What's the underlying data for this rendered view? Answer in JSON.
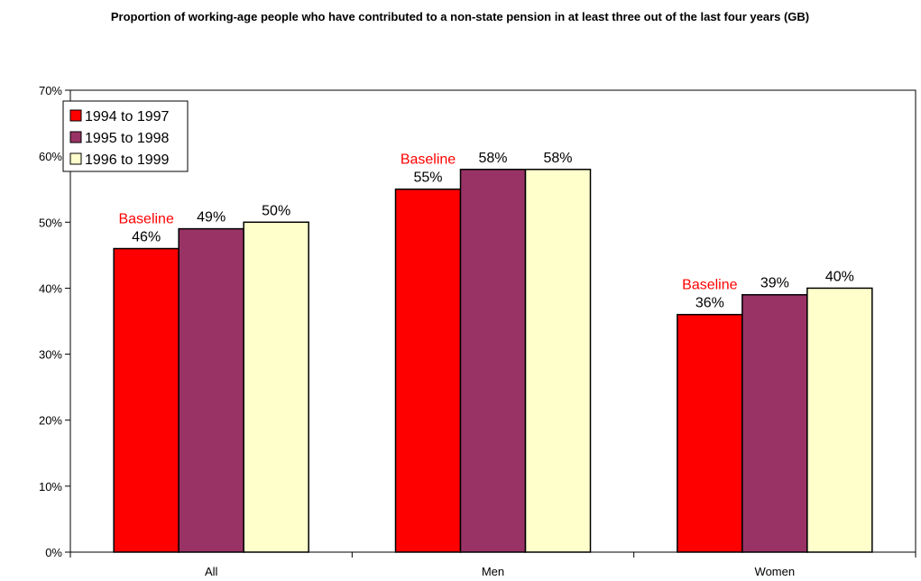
{
  "chart_data": {
    "type": "bar",
    "title": "Proportion of working-age people who have contributed to a non-state pension in at least three out of the last four years (GB)",
    "categories": [
      "All",
      "Men",
      "Women"
    ],
    "series": [
      {
        "name": "1994 to 1997",
        "color": "#ff0000",
        "values": [
          46,
          55,
          36
        ],
        "labels": [
          "46%",
          "55%",
          "36%"
        ]
      },
      {
        "name": "1995 to 1998",
        "color": "#993366",
        "values": [
          49,
          58,
          39
        ],
        "labels": [
          "49%",
          "58%",
          "39%"
        ]
      },
      {
        "name": "1996 to 1999",
        "color": "#ffffcc",
        "values": [
          50,
          58,
          40
        ],
        "labels": [
          "50%",
          "58%",
          "40%"
        ]
      }
    ],
    "ylim": [
      0,
      70
    ],
    "yticks": [
      0,
      10,
      20,
      30,
      40,
      50,
      60,
      70
    ],
    "ytick_labels": [
      "0%",
      "10%",
      "20%",
      "30%",
      "40%",
      "50%",
      "60%",
      "70%"
    ],
    "annotation": {
      "text": "Baseline",
      "series": 0,
      "color": "#ff0000"
    },
    "legend_position": "top-left",
    "grid": false
  }
}
